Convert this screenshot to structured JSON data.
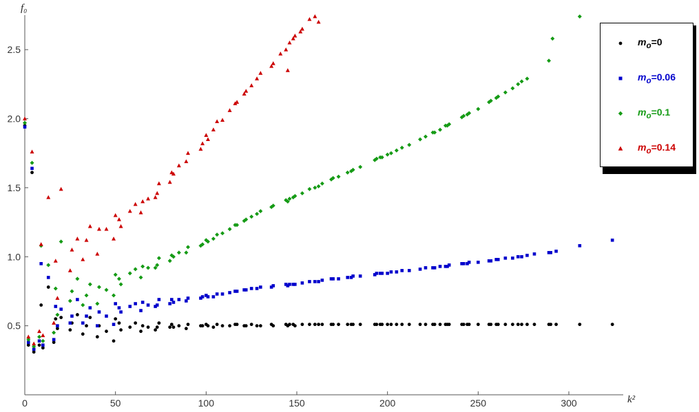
{
  "chart_data": {
    "type": "scatter",
    "title": "",
    "xlabel": "k²",
    "ylabel": "f₀",
    "xlim": [
      0,
      330
    ],
    "ylim": [
      0.0,
      2.75
    ],
    "xticks": [
      0,
      50,
      100,
      150,
      200,
      250,
      300
    ],
    "yticks": [
      0.5,
      1.0,
      1.5,
      2.0,
      2.5
    ],
    "xtick_labels": [
      "0",
      "50",
      "100",
      "150",
      "200",
      "250",
      "300"
    ],
    "ytick_labels": [
      "0.5",
      "1.0",
      "1.5",
      "2.0",
      "2.5"
    ],
    "grid": false,
    "legend_position": "top-right",
    "series": [
      {
        "name": "mₒ=0",
        "label_prefix": "m",
        "label_sub": "o",
        "label_value": "=0",
        "color": "#000000",
        "marker": "circle",
        "x": [
          0,
          2,
          4,
          5,
          8,
          9,
          10,
          13,
          16,
          17,
          18,
          20,
          25,
          26,
          29,
          32,
          34,
          36,
          40,
          41,
          45,
          49,
          50,
          52,
          53,
          58,
          61,
          64,
          65,
          68,
          72,
          73,
          74,
          80,
          81,
          82,
          85,
          89,
          90,
          97,
          98,
          100,
          101,
          104,
          106,
          109,
          113,
          116,
          117,
          121,
          122,
          125,
          128,
          130,
          136,
          137,
          144,
          145,
          146,
          148,
          149,
          153,
          157,
          160,
          162,
          164,
          169,
          170,
          173,
          178,
          180,
          181,
          185,
          193,
          194,
          196,
          197,
          200,
          202,
          205,
          208,
          212,
          218,
          221,
          225,
          226,
          229,
          232,
          233,
          234,
          241,
          242,
          244,
          245,
          250,
          256,
          257,
          260,
          261,
          265,
          269,
          272,
          274,
          277,
          281,
          289,
          290,
          293,
          306,
          324
        ],
        "y": [
          1.95,
          0.36,
          1.61,
          0.31,
          0.36,
          0.65,
          0.34,
          0.78,
          0.38,
          0.55,
          0.48,
          0.56,
          0.47,
          0.52,
          0.58,
          0.44,
          0.5,
          0.56,
          0.42,
          0.5,
          0.46,
          0.39,
          0.55,
          0.52,
          0.47,
          0.49,
          0.52,
          0.46,
          0.5,
          0.49,
          0.47,
          0.49,
          0.52,
          0.49,
          0.51,
          0.49,
          0.5,
          0.48,
          0.51,
          0.5,
          0.5,
          0.51,
          0.5,
          0.49,
          0.51,
          0.5,
          0.5,
          0.51,
          0.51,
          0.5,
          0.5,
          0.51,
          0.5,
          0.5,
          0.51,
          0.5,
          0.51,
          0.5,
          0.51,
          0.51,
          0.5,
          0.51,
          0.51,
          0.51,
          0.51,
          0.51,
          0.51,
          0.51,
          0.51,
          0.51,
          0.51,
          0.51,
          0.51,
          0.51,
          0.51,
          0.51,
          0.51,
          0.51,
          0.51,
          0.51,
          0.51,
          0.51,
          0.51,
          0.51,
          0.51,
          0.51,
          0.51,
          0.51,
          0.51,
          0.51,
          0.51,
          0.51,
          0.51,
          0.51,
          0.51,
          0.51,
          0.51,
          0.51,
          0.51,
          0.51,
          0.51,
          0.51,
          0.51,
          0.51,
          0.51,
          0.51,
          0.51,
          0.51,
          0.51,
          0.51
        ]
      },
      {
        "name": "mₒ=0.06",
        "label_prefix": "m",
        "label_sub": "o",
        "label_value": "=0.06",
        "color": "#0000cc",
        "marker": "square",
        "x": [
          0,
          2,
          4,
          5,
          8,
          9,
          10,
          13,
          16,
          17,
          18,
          20,
          25,
          26,
          29,
          32,
          34,
          36,
          40,
          41,
          45,
          49,
          50,
          52,
          53,
          58,
          61,
          64,
          65,
          68,
          72,
          73,
          74,
          80,
          81,
          82,
          85,
          89,
          90,
          97,
          98,
          100,
          101,
          104,
          106,
          109,
          113,
          116,
          117,
          121,
          122,
          125,
          128,
          130,
          136,
          137,
          144,
          145,
          146,
          148,
          149,
          153,
          157,
          160,
          162,
          164,
          169,
          170,
          173,
          178,
          180,
          181,
          185,
          193,
          194,
          196,
          197,
          200,
          202,
          205,
          208,
          212,
          218,
          221,
          225,
          226,
          229,
          232,
          233,
          234,
          241,
          242,
          244,
          245,
          250,
          256,
          257,
          260,
          261,
          265,
          269,
          272,
          274,
          277,
          281,
          289,
          290,
          293,
          306,
          324
        ],
        "y": [
          1.94,
          0.38,
          1.64,
          0.33,
          0.39,
          0.95,
          0.36,
          0.85,
          0.4,
          0.64,
          0.5,
          0.62,
          0.52,
          0.57,
          0.69,
          0.52,
          0.57,
          0.63,
          0.5,
          0.6,
          0.57,
          0.51,
          0.66,
          0.63,
          0.6,
          0.64,
          0.66,
          0.61,
          0.67,
          0.65,
          0.64,
          0.65,
          0.69,
          0.66,
          0.69,
          0.67,
          0.69,
          0.68,
          0.7,
          0.7,
          0.71,
          0.72,
          0.71,
          0.71,
          0.73,
          0.73,
          0.74,
          0.75,
          0.75,
          0.76,
          0.76,
          0.77,
          0.77,
          0.78,
          0.78,
          0.79,
          0.8,
          0.79,
          0.8,
          0.8,
          0.8,
          0.81,
          0.82,
          0.82,
          0.82,
          0.83,
          0.84,
          0.84,
          0.84,
          0.85,
          0.85,
          0.86,
          0.86,
          0.87,
          0.88,
          0.88,
          0.88,
          0.88,
          0.89,
          0.89,
          0.9,
          0.9,
          0.91,
          0.92,
          0.92,
          0.92,
          0.93,
          0.93,
          0.93,
          0.94,
          0.95,
          0.95,
          0.95,
          0.96,
          0.96,
          0.97,
          0.97,
          0.98,
          0.98,
          0.99,
          0.99,
          1.0,
          1.0,
          1.01,
          1.02,
          1.03,
          1.03,
          1.04,
          1.08,
          1.12
        ]
      },
      {
        "name": "mₒ=0.1",
        "label_prefix": "m",
        "label_sub": "o",
        "label_value": "=0.1",
        "color": "#169b16",
        "marker": "diamond",
        "x": [
          0,
          2,
          4,
          5,
          8,
          9,
          10,
          13,
          16,
          17,
          18,
          20,
          25,
          26,
          29,
          32,
          34,
          36,
          40,
          41,
          45,
          49,
          50,
          52,
          53,
          58,
          61,
          64,
          65,
          68,
          72,
          73,
          74,
          80,
          81,
          82,
          85,
          89,
          90,
          97,
          98,
          100,
          101,
          104,
          106,
          109,
          113,
          116,
          117,
          121,
          122,
          125,
          128,
          130,
          136,
          137,
          144,
          145,
          146,
          148,
          149,
          153,
          157,
          160,
          162,
          164,
          169,
          170,
          173,
          178,
          180,
          181,
          185,
          193,
          194,
          196,
          197,
          200,
          202,
          205,
          208,
          212,
          218,
          221,
          225,
          226,
          229,
          232,
          233,
          234,
          241,
          242,
          244,
          245,
          250,
          256,
          257,
          260,
          261,
          265,
          269,
          272,
          274,
          277,
          289,
          291,
          306
        ],
        "y": [
          1.97,
          0.4,
          1.68,
          0.35,
          0.42,
          1.08,
          0.39,
          0.94,
          0.45,
          0.77,
          0.58,
          1.11,
          0.68,
          0.75,
          0.84,
          0.65,
          0.72,
          0.8,
          0.66,
          0.78,
          0.76,
          0.72,
          0.87,
          0.84,
          0.8,
          0.88,
          0.91,
          0.85,
          0.93,
          0.92,
          0.92,
          0.94,
          0.99,
          0.97,
          1.01,
          1.0,
          1.03,
          1.03,
          1.07,
          1.08,
          1.09,
          1.12,
          1.11,
          1.13,
          1.16,
          1.17,
          1.2,
          1.23,
          1.23,
          1.26,
          1.27,
          1.29,
          1.31,
          1.33,
          1.36,
          1.37,
          1.41,
          1.4,
          1.42,
          1.43,
          1.44,
          1.46,
          1.49,
          1.5,
          1.51,
          1.53,
          1.56,
          1.57,
          1.58,
          1.61,
          1.62,
          1.63,
          1.65,
          1.7,
          1.71,
          1.72,
          1.72,
          1.74,
          1.75,
          1.77,
          1.79,
          1.81,
          1.85,
          1.87,
          1.9,
          1.9,
          1.92,
          1.95,
          1.95,
          1.96,
          2.01,
          2.02,
          2.03,
          2.04,
          2.07,
          2.12,
          2.13,
          2.15,
          2.16,
          2.19,
          2.22,
          2.25,
          2.27,
          2.29,
          2.42,
          2.58,
          2.74
        ]
      },
      {
        "name": "mₒ=0.14",
        "label_prefix": "m",
        "label_sub": "o",
        "label_value": "=0.14",
        "color": "#cc0000",
        "marker": "triangle",
        "x": [
          0,
          2,
          4,
          5,
          8,
          9,
          10,
          13,
          16,
          17,
          18,
          20,
          25,
          26,
          29,
          32,
          34,
          36,
          40,
          41,
          45,
          49,
          50,
          52,
          53,
          58,
          61,
          64,
          65,
          68,
          72,
          73,
          74,
          80,
          81,
          82,
          85,
          89,
          90,
          97,
          98,
          100,
          101,
          104,
          106,
          109,
          113,
          116,
          117,
          121,
          122,
          125,
          128,
          130,
          136,
          137,
          141,
          144,
          145,
          146,
          148,
          149,
          152,
          153,
          157,
          160,
          162
        ],
        "y": [
          2.0,
          0.42,
          1.76,
          0.37,
          0.46,
          1.09,
          0.43,
          1.43,
          0.52,
          0.97,
          0.7,
          1.49,
          0.9,
          1.05,
          1.13,
          0.98,
          1.12,
          1.22,
          1.02,
          1.2,
          1.2,
          1.13,
          1.3,
          1.27,
          1.22,
          1.33,
          1.38,
          1.32,
          1.4,
          1.42,
          1.43,
          1.46,
          1.53,
          1.54,
          1.61,
          1.6,
          1.66,
          1.69,
          1.75,
          1.78,
          1.82,
          1.88,
          1.85,
          1.92,
          1.98,
          1.99,
          2.06,
          2.11,
          2.12,
          2.18,
          2.2,
          2.24,
          2.29,
          2.33,
          2.38,
          2.4,
          2.47,
          2.5,
          2.35,
          2.55,
          2.58,
          2.6,
          2.63,
          2.65,
          2.72,
          2.74,
          2.7
        ]
      }
    ]
  }
}
